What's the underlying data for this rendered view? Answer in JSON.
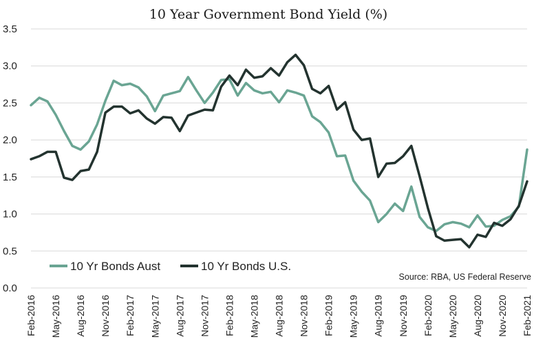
{
  "chart_data": {
    "type": "line",
    "title": "10 Year Government Bond Yield (%)",
    "xlabel": "",
    "ylabel": "",
    "ylim": [
      0,
      3.5
    ],
    "yticks": [
      "0.0",
      "0.5",
      "1.0",
      "1.5",
      "2.0",
      "2.5",
      "3.0",
      "3.5"
    ],
    "grid": true,
    "legend_position": "bottom-left",
    "source": "Source: RBA, US Federal Reserve",
    "x": [
      "Feb-2016",
      "Mar-2016",
      "Apr-2016",
      "May-2016",
      "Jun-2016",
      "Jul-2016",
      "Aug-2016",
      "Sep-2016",
      "Oct-2016",
      "Nov-2016",
      "Dec-2016",
      "Jan-2017",
      "Feb-2017",
      "Mar-2017",
      "Apr-2017",
      "May-2017",
      "Jun-2017",
      "Jul-2017",
      "Aug-2017",
      "Sep-2017",
      "Oct-2017",
      "Nov-2017",
      "Dec-2017",
      "Jan-2018",
      "Feb-2018",
      "Mar-2018",
      "Apr-2018",
      "May-2018",
      "Jun-2018",
      "Jul-2018",
      "Aug-2018",
      "Sep-2018",
      "Oct-2018",
      "Nov-2018",
      "Dec-2018",
      "Jan-2019",
      "Feb-2019",
      "Mar-2019",
      "Apr-2019",
      "May-2019",
      "Jun-2019",
      "Jul-2019",
      "Aug-2019",
      "Sep-2019",
      "Oct-2019",
      "Nov-2019",
      "Dec-2019",
      "Jan-2020",
      "Feb-2020",
      "Mar-2020",
      "Apr-2020",
      "May-2020",
      "Jun-2020",
      "Jul-2020",
      "Aug-2020",
      "Sep-2020",
      "Oct-2020",
      "Nov-2020",
      "Dec-2020",
      "Jan-2021",
      "Feb-2021"
    ],
    "x_tick_labels": [
      "Feb-2016",
      "May-2016",
      "Aug-2016",
      "Nov-2016",
      "Feb-2017",
      "May-2017",
      "Aug-2017",
      "Nov-2017",
      "Feb-2018",
      "May-2018",
      "Aug-2018",
      "Nov-2018",
      "Feb-2019",
      "May-2019",
      "Aug-2019",
      "Nov-2019",
      "Feb-2020",
      "May-2020",
      "Aug-2020",
      "Nov-2020",
      "Feb-2021"
    ],
    "series": [
      {
        "name": "10 Yr Bonds Aust",
        "color": "#6aa593",
        "values": [
          2.47,
          2.57,
          2.52,
          2.34,
          2.12,
          1.92,
          1.87,
          1.98,
          2.21,
          2.53,
          2.8,
          2.74,
          2.76,
          2.71,
          2.59,
          2.39,
          2.6,
          2.63,
          2.66,
          2.85,
          2.67,
          2.5,
          2.64,
          2.81,
          2.82,
          2.6,
          2.77,
          2.67,
          2.63,
          2.65,
          2.51,
          2.67,
          2.64,
          2.6,
          2.32,
          2.24,
          2.1,
          1.78,
          1.79,
          1.45,
          1.3,
          1.18,
          0.89,
          1.0,
          1.14,
          1.04,
          1.37,
          0.96,
          0.82,
          0.77,
          0.86,
          0.89,
          0.87,
          0.82,
          0.98,
          0.83,
          0.84,
          0.92,
          0.97,
          1.1,
          1.87
        ]
      },
      {
        "name": "10 Yr Bonds U.S.",
        "color": "#23332f",
        "values": [
          1.74,
          1.78,
          1.84,
          1.84,
          1.49,
          1.46,
          1.58,
          1.6,
          1.84,
          2.37,
          2.45,
          2.45,
          2.36,
          2.4,
          2.29,
          2.22,
          2.31,
          2.3,
          2.12,
          2.33,
          2.37,
          2.41,
          2.4,
          2.72,
          2.87,
          2.74,
          2.95,
          2.84,
          2.86,
          2.97,
          2.87,
          3.05,
          3.15,
          3.01,
          2.69,
          2.63,
          2.73,
          2.41,
          2.51,
          2.14,
          2.0,
          2.02,
          1.5,
          1.68,
          1.69,
          1.78,
          1.92,
          1.51,
          1.08,
          0.7,
          0.64,
          0.65,
          0.66,
          0.55,
          0.72,
          0.69,
          0.88,
          0.84,
          0.93,
          1.11,
          1.44
        ]
      }
    ]
  }
}
